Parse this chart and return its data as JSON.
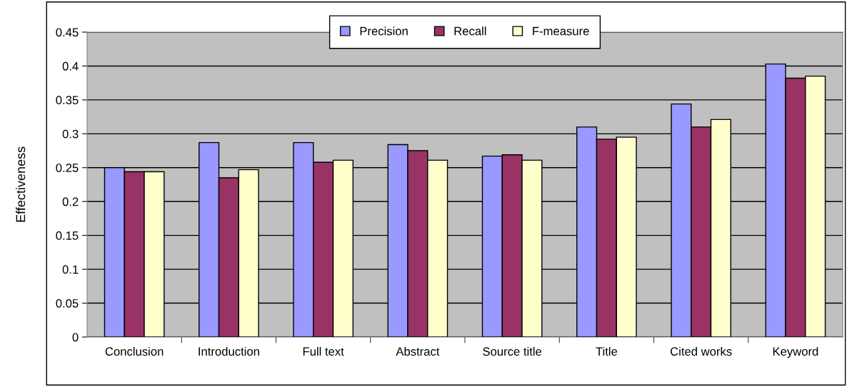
{
  "chart_data": {
    "type": "bar",
    "ylabel": "Effectiveness",
    "categories": [
      "Conclusion",
      "Introduction",
      "Full text",
      "Abstract",
      "Source title",
      "Title",
      "Cited works",
      "Keyword"
    ],
    "series": [
      {
        "name": "Precision",
        "color": "#9999ff",
        "values": [
          0.25,
          0.287,
          0.287,
          0.284,
          0.267,
          0.31,
          0.344,
          0.403
        ]
      },
      {
        "name": "Recall",
        "color": "#993366",
        "values": [
          0.244,
          0.235,
          0.258,
          0.275,
          0.269,
          0.292,
          0.31,
          0.382
        ]
      },
      {
        "name": "F-measure",
        "color": "#ffffcc",
        "values": [
          0.244,
          0.247,
          0.261,
          0.261,
          0.261,
          0.295,
          0.321,
          0.385
        ]
      }
    ],
    "ylim": [
      0,
      0.45
    ],
    "yticks": [
      0,
      0.05,
      0.1,
      0.15,
      0.2,
      0.25,
      0.3,
      0.35,
      0.4,
      0.45
    ],
    "grid": "y",
    "legend": "top"
  }
}
